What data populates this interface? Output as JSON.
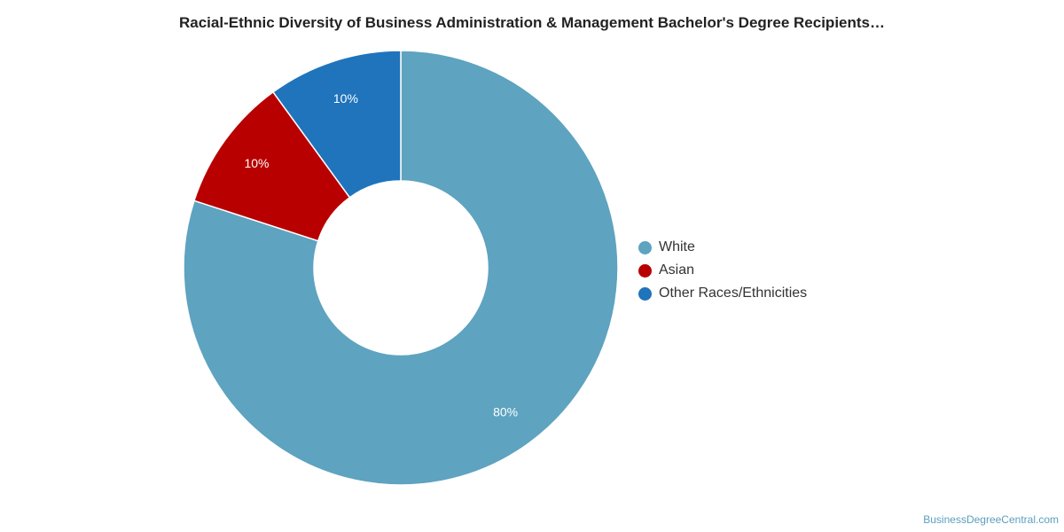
{
  "chart_data": {
    "type": "pie",
    "title": "Racial-Ethnic Diversity of Business Administration & Management Bachelor's Degree Recipients…",
    "categories": [
      "White",
      "Asian",
      "Other Races/Ethnicities"
    ],
    "values": [
      80,
      10,
      10
    ],
    "labels": [
      "80%",
      "10%",
      "10%"
    ],
    "colors": [
      "#5ea3c0",
      "#b90000",
      "#1f74bb"
    ],
    "donut": true,
    "legend": "right"
  },
  "legend_items": [
    {
      "label": "White",
      "color": "#5ea3c0"
    },
    {
      "label": "Asian",
      "color": "#b90000"
    },
    {
      "label": "Other Races/Ethnicities",
      "color": "#1f74bb"
    }
  ],
  "watermark": "BusinessDegreeCentral.com"
}
